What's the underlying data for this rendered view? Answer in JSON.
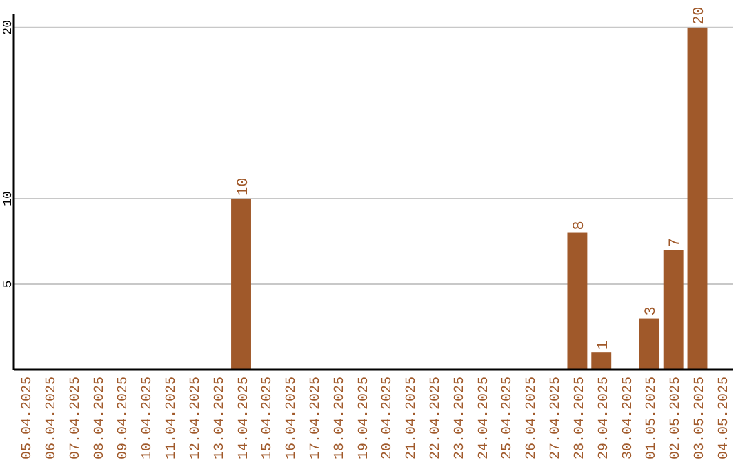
{
  "chart_data": {
    "type": "bar",
    "categories": [
      "05.04.2025",
      "06.04.2025",
      "07.04.2025",
      "08.04.2025",
      "09.04.2025",
      "10.04.2025",
      "11.04.2025",
      "12.04.2025",
      "13.04.2025",
      "14.04.2025",
      "15.04.2025",
      "16.04.2025",
      "17.04.2025",
      "18.04.2025",
      "19.04.2025",
      "20.04.2025",
      "21.04.2025",
      "22.04.2025",
      "23.04.2025",
      "24.04.2025",
      "25.04.2025",
      "26.04.2025",
      "27.04.2025",
      "28.04.2025",
      "29.04.2025",
      "30.04.2025",
      "01.05.2025",
      "02.05.2025",
      "03.05.2025",
      "04.05.2025"
    ],
    "values": [
      0,
      0,
      0,
      0,
      0,
      0,
      0,
      0,
      0,
      10,
      0,
      0,
      0,
      0,
      0,
      0,
      0,
      0,
      0,
      0,
      0,
      0,
      0,
      8,
      1,
      0,
      3,
      7,
      20,
      0
    ],
    "value_labels": [
      null,
      null,
      null,
      null,
      null,
      null,
      null,
      null,
      null,
      "10",
      null,
      null,
      null,
      null,
      null,
      null,
      null,
      null,
      null,
      null,
      null,
      null,
      null,
      "8",
      "1",
      null,
      "3",
      "7",
      "20",
      null
    ],
    "color": "#a0592a",
    "ylim": [
      0,
      20.8
    ],
    "yticks": [
      5,
      10,
      20
    ],
    "grid": "y"
  }
}
